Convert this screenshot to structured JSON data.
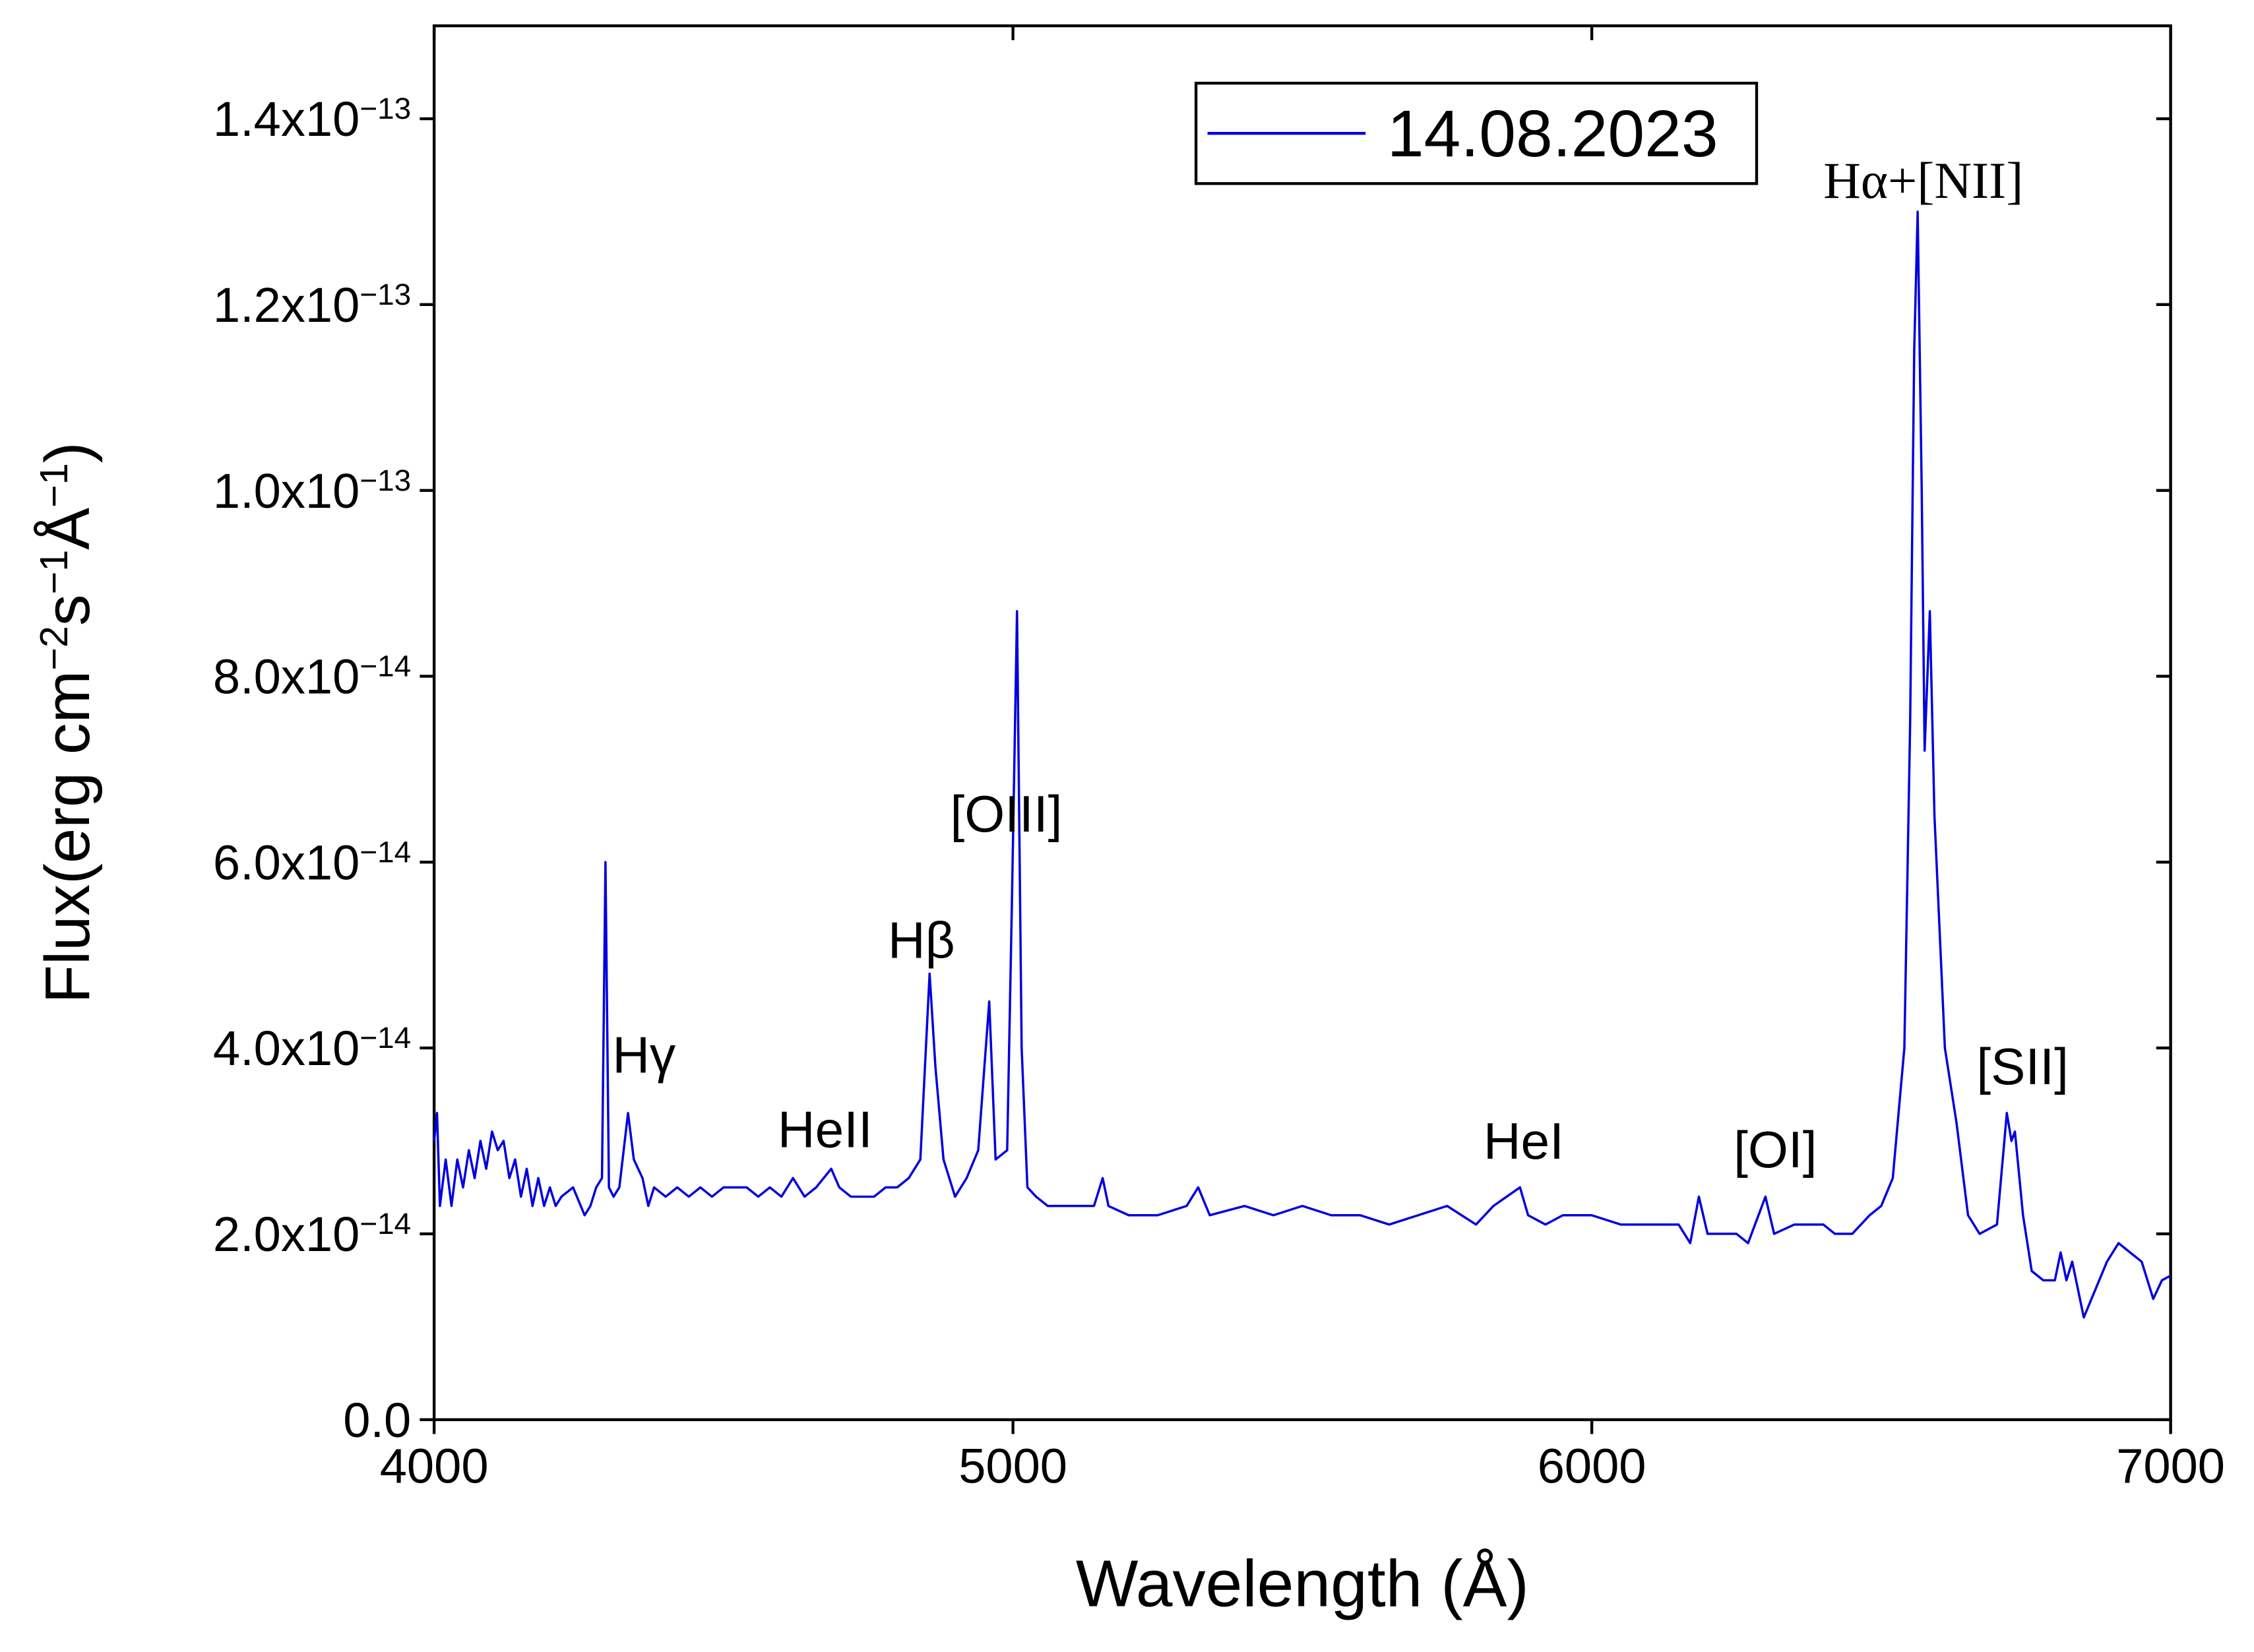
{
  "chart_data": {
    "type": "line",
    "xlabel": "Wavelength (Å)",
    "ylabel": "Flux(erg cm−2s−1Å−1)",
    "xlim": [
      4000,
      7000
    ],
    "ylim": [
      0,
      1.5e-13
    ],
    "xticks": [
      4000,
      5000,
      6000,
      7000
    ],
    "yticks": [
      {
        "value": 0,
        "label": "0.0"
      },
      {
        "value": 2e-14,
        "label": "2.0x10−14"
      },
      {
        "value": 4e-14,
        "label": "4.0x10−14"
      },
      {
        "value": 6e-14,
        "label": "6.0x10−14"
      },
      {
        "value": 8e-14,
        "label": "8.0x10−14"
      },
      {
        "value": 1e-13,
        "label": "1.0x10−13"
      },
      {
        "value": 1.2e-13,
        "label": "1.2x10−13"
      },
      {
        "value": 1.4e-13,
        "label": "1.4x10−13"
      }
    ],
    "legend": "upper right",
    "annotations": [
      "Hγ",
      "HeII",
      "Hβ",
      "[OIII]",
      "HeI",
      "[OI]",
      "Hα+[NII]",
      "[SII]"
    ],
    "x": [
      4000,
      4005,
      4010,
      4020,
      4030,
      4040,
      4050,
      4060,
      4070,
      4080,
      4090,
      4100,
      4110,
      4120,
      4130,
      4140,
      4150,
      4160,
      4170,
      4180,
      4190,
      4200,
      4210,
      4220,
      4240,
      4260,
      4270,
      4280,
      4290,
      4296,
      4302,
      4310,
      4320,
      4335,
      4345,
      4360,
      4370,
      4380,
      4400,
      4420,
      4440,
      4460,
      4480,
      4500,
      4520,
      4540,
      4560,
      4580,
      4600,
      4620,
      4640,
      4660,
      4686,
      4700,
      4720,
      4740,
      4760,
      4780,
      4800,
      4820,
      4840,
      4856,
      4866,
      4880,
      4900,
      4920,
      4940,
      4959,
      4970,
      4990,
      4998,
      5007,
      5015,
      5025,
      5040,
      5060,
      5080,
      5100,
      5120,
      5140,
      5155,
      5165,
      5200,
      5250,
      5300,
      5320,
      5340,
      5400,
      5450,
      5500,
      5550,
      5600,
      5650,
      5700,
      5750,
      5800,
      5830,
      5876,
      5890,
      5920,
      5950,
      6000,
      6050,
      6100,
      6150,
      6170,
      6185,
      6200,
      6250,
      6270,
      6300,
      6315,
      6350,
      6400,
      6420,
      6450,
      6480,
      6500,
      6520,
      6540,
      6550,
      6557,
      6563,
      6570,
      6575,
      6584,
      6592,
      6610,
      6630,
      6650,
      6670,
      6700,
      6717,
      6725,
      6731,
      6745,
      6760,
      6780,
      6800,
      6810,
      6820,
      6830,
      6850,
      6870,
      6890,
      6910,
      6930,
      6950,
      6970,
      6985,
      7000
    ],
    "series": [
      {
        "name": "14.08.2023",
        "color": "#0000e0",
        "values": [
          3e-14,
          3.3e-14,
          2.3e-14,
          2.8e-14,
          2.3e-14,
          2.8e-14,
          2.5e-14,
          2.9e-14,
          2.6e-14,
          3e-14,
          2.7e-14,
          3.1e-14,
          2.9e-14,
          3e-14,
          2.6e-14,
          2.8e-14,
          2.4e-14,
          2.7e-14,
          2.3e-14,
          2.6e-14,
          2.3e-14,
          2.5e-14,
          2.3e-14,
          2.4e-14,
          2.5e-14,
          2.2e-14,
          2.3e-14,
          2.5e-14,
          2.6e-14,
          6e-14,
          2.5e-14,
          2.4e-14,
          2.5e-14,
          3.3e-14,
          2.8e-14,
          2.6e-14,
          2.3e-14,
          2.5e-14,
          2.4e-14,
          2.5e-14,
          2.4e-14,
          2.5e-14,
          2.4e-14,
          2.5e-14,
          2.5e-14,
          2.5e-14,
          2.4e-14,
          2.5e-14,
          2.4e-14,
          2.6e-14,
          2.4e-14,
          2.5e-14,
          2.7e-14,
          2.5e-14,
          2.4e-14,
          2.4e-14,
          2.4e-14,
          2.5e-14,
          2.5e-14,
          2.6e-14,
          2.8e-14,
          4.8e-14,
          3.8e-14,
          2.8e-14,
          2.4e-14,
          2.6e-14,
          2.9e-14,
          4.5e-14,
          2.8e-14,
          2.9e-14,
          5.5e-14,
          8.7e-14,
          4e-14,
          2.5e-14,
          2.4e-14,
          2.3e-14,
          2.3e-14,
          2.3e-14,
          2.3e-14,
          2.3e-14,
          2.6e-14,
          2.3e-14,
          2.2e-14,
          2.2e-14,
          2.3e-14,
          2.5e-14,
          2.2e-14,
          2.3e-14,
          2.2e-14,
          2.3e-14,
          2.2e-14,
          2.2e-14,
          2.1e-14,
          2.2e-14,
          2.3e-14,
          2.1e-14,
          2.3e-14,
          2.5e-14,
          2.2e-14,
          2.1e-14,
          2.2e-14,
          2.2e-14,
          2.1e-14,
          2.1e-14,
          2.1e-14,
          1.9e-14,
          2.4e-14,
          2e-14,
          2e-14,
          1.9e-14,
          2.4e-14,
          2e-14,
          2.1e-14,
          2.1e-14,
          2e-14,
          2e-14,
          2.2e-14,
          2.3e-14,
          2.6e-14,
          4e-14,
          7.5e-14,
          1.15e-13,
          1.3e-13,
          1e-13,
          7.2e-14,
          8.7e-14,
          6.5e-14,
          4e-14,
          3.2e-14,
          2.2e-14,
          2e-14,
          2.1e-14,
          3.3e-14,
          3e-14,
          3.1e-14,
          2.2e-14,
          1.6e-14,
          1.5e-14,
          1.5e-14,
          1.8e-14,
          1.5e-14,
          1.7e-14,
          1.1e-14,
          1.4e-14,
          1.7e-14,
          1.9e-14,
          1.8e-14,
          1.7e-14,
          1.3e-14,
          1.5e-14,
          1.55e-14
        ]
      }
    ]
  }
}
